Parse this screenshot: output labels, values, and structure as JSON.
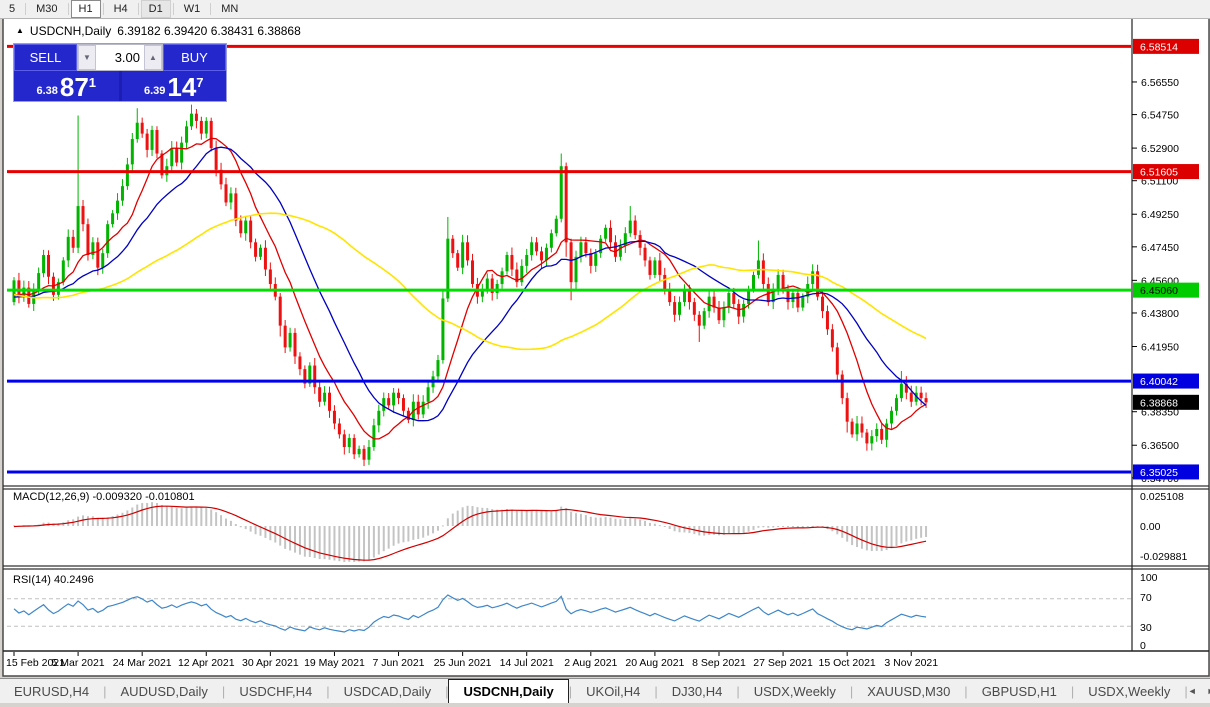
{
  "toolbar": {
    "periods": [
      {
        "label": "5",
        "state": "normal"
      },
      {
        "label": "M30",
        "state": "normal"
      },
      {
        "label": "H1",
        "state": "pressed"
      },
      {
        "label": "H4",
        "state": "normal"
      },
      {
        "label": "D1",
        "state": "soft"
      },
      {
        "label": "W1",
        "state": "normal"
      },
      {
        "label": "MN",
        "state": "normal"
      }
    ]
  },
  "window": {
    "title_symbol": "USDCNH,Daily",
    "title_ohlc": "6.39182 6.39420 6.38431 6.38868",
    "open": "6.39182",
    "high": "6.39420",
    "low": "6.38431",
    "close": "6.38868",
    "collapse_icon": "▲"
  },
  "trade_panel": {
    "sell_label": "SELL",
    "buy_label": "BUY",
    "volume": "3.00",
    "sell_price_small": "6.38",
    "sell_price_big": "87",
    "sell_price_sup": "1",
    "buy_price_small": "6.39",
    "buy_price_big": "14",
    "buy_price_sup": "7",
    "down_arrow": "▼",
    "up_arrow": "▲"
  },
  "macd_panel": {
    "label": "MACD(12,26,9) -0.009320 -0.010801",
    "scale": [
      "0.025108",
      "0.00",
      "-0.029881"
    ],
    "bar_color": "#c4c4c4",
    "signal_color": "#d00000"
  },
  "rsi_panel": {
    "label": "RSI(14) 40.2496",
    "levels": [
      "100",
      "70",
      "30",
      "0"
    ],
    "line_color": "#3e87c8",
    "level_line_color": "#c0c0c0"
  },
  "price_axis": {
    "ticks": [
      "6.56550",
      "6.54750",
      "6.52900",
      "6.51100",
      "6.49250",
      "6.47450",
      "6.45600",
      "6.43800",
      "6.41950",
      "6.38350",
      "6.36500",
      "6.34700"
    ]
  },
  "chart_data": {
    "type": "candlestick",
    "symbol": "USDCNH",
    "timeframe": "Daily",
    "bull_color": "#00b400",
    "bear_color": "#ee1111",
    "price_range": {
      "top": 6.5997,
      "bottom": 6.3436
    },
    "hlines": [
      {
        "price": 6.58514,
        "label": "6.58514",
        "color": "#e80000",
        "badge_bg": "#dd0000",
        "badge_fg": "#ffffff",
        "width": 3
      },
      {
        "price": 6.51605,
        "label": "6.51605",
        "color": "#e80000",
        "badge_bg": "#dd0000",
        "badge_fg": "#ffffff",
        "width": 3
      },
      {
        "price": 6.4506,
        "label": "6.45060",
        "color": "#00e000",
        "badge_bg": "#00cc00",
        "badge_fg": "#000000",
        "width": 3
      },
      {
        "price": 6.40042,
        "label": "6.40042",
        "color": "#0000f0",
        "badge_bg": "#0000e0",
        "badge_fg": "#ffffff",
        "width": 3
      },
      {
        "price": 6.35025,
        "label": "6.35025",
        "color": "#0000f0",
        "badge_bg": "#0000e0",
        "badge_fg": "#ffffff",
        "width": 3
      }
    ],
    "current_price": {
      "price": 6.38868,
      "label": "6.38868",
      "badge_bg": "#000000",
      "badge_fg": "#ffffff"
    },
    "ma_lines": [
      {
        "name": "ma-fast",
        "period": 10,
        "color": "#e00000"
      },
      {
        "name": "ma-mid",
        "period": 21,
        "color": "#0000c0"
      },
      {
        "name": "ma-slow",
        "period": 55,
        "color": "#ffe400"
      }
    ],
    "x_labels": [
      {
        "i": 0,
        "t": "15 Feb 2021"
      },
      {
        "i": 13,
        "t": "5 Mar 2021"
      },
      {
        "i": 26,
        "t": "24 Mar 2021"
      },
      {
        "i": 39,
        "t": "12 Apr 2021"
      },
      {
        "i": 52,
        "t": "30 Apr 2021"
      },
      {
        "i": 65,
        "t": "19 May 2021"
      },
      {
        "i": 78,
        "t": "7 Jun 2021"
      },
      {
        "i": 91,
        "t": "25 Jun 2021"
      },
      {
        "i": 104,
        "t": "14 Jul 2021"
      },
      {
        "i": 117,
        "t": "2 Aug 2021"
      },
      {
        "i": 130,
        "t": "20 Aug 2021"
      },
      {
        "i": 143,
        "t": "8 Sep 2021"
      },
      {
        "i": 156,
        "t": "27 Sep 2021"
      },
      {
        "i": 169,
        "t": "15 Oct 2021"
      },
      {
        "i": 182,
        "t": "3 Nov 2021"
      }
    ],
    "pre_closes": [
      6.498,
      6.492,
      6.486,
      6.49,
      6.483,
      6.476,
      6.481,
      6.473,
      6.467,
      6.471,
      6.464,
      6.458,
      6.462,
      6.455,
      6.449,
      6.453,
      6.446,
      6.451,
      6.444,
      6.448,
      6.441,
      6.445,
      6.439,
      6.443,
      6.437,
      6.441,
      6.446,
      6.44,
      6.444,
      6.438,
      6.442,
      6.447,
      6.441,
      6.445,
      6.439,
      6.443,
      6.448,
      6.442,
      6.446,
      6.44,
      6.444,
      6.449,
      6.443,
      6.447,
      6.441,
      6.445,
      6.45,
      6.444,
      6.448,
      6.442,
      6.446,
      6.451,
      6.445,
      6.449,
      6.443,
      6.447,
      6.452,
      6.446,
      6.45,
      6.444
    ],
    "closes": [
      6.456,
      6.447,
      6.452,
      6.443,
      6.451,
      6.46,
      6.47,
      6.458,
      6.448,
      6.455,
      6.467,
      6.48,
      6.474,
      6.497,
      6.487,
      6.47,
      6.477,
      6.463,
      6.471,
      6.487,
      6.493,
      6.5,
      6.508,
      6.52,
      6.534,
      6.543,
      6.537,
      6.528,
      6.539,
      6.526,
      6.514,
      6.519,
      6.529,
      6.521,
      6.532,
      6.541,
      6.548,
      6.544,
      6.537,
      6.544,
      6.529,
      6.517,
      6.509,
      6.499,
      6.504,
      6.489,
      6.482,
      6.489,
      6.477,
      6.469,
      6.474,
      6.462,
      6.454,
      6.447,
      6.431,
      6.419,
      6.427,
      6.414,
      6.407,
      6.399,
      6.409,
      6.397,
      6.389,
      6.394,
      6.384,
      6.377,
      6.371,
      6.364,
      6.369,
      6.36,
      6.363,
      6.357,
      6.364,
      6.376,
      6.384,
      6.391,
      6.387,
      6.394,
      6.391,
      6.384,
      6.379,
      6.389,
      6.382,
      6.389,
      6.397,
      6.403,
      6.412,
      6.446,
      6.479,
      6.471,
      6.463,
      6.477,
      6.467,
      6.454,
      6.447,
      6.451,
      6.457,
      6.449,
      6.454,
      6.461,
      6.47,
      6.462,
      6.455,
      6.464,
      6.47,
      6.477,
      6.472,
      6.467,
      6.474,
      6.482,
      6.49,
      6.519,
      6.477,
      6.455,
      6.469,
      6.477,
      6.471,
      6.464,
      6.471,
      6.479,
      6.485,
      6.477,
      6.469,
      6.475,
      6.482,
      6.489,
      6.481,
      6.474,
      6.467,
      6.459,
      6.467,
      6.459,
      6.451,
      6.444,
      6.437,
      6.444,
      6.451,
      6.444,
      6.437,
      6.431,
      6.439,
      6.447,
      6.441,
      6.434,
      6.441,
      6.449,
      6.443,
      6.436,
      6.443,
      6.451,
      6.459,
      6.467,
      6.454,
      6.444,
      6.451,
      6.459,
      6.451,
      6.444,
      6.449,
      6.441,
      6.447,
      6.454,
      6.461,
      6.447,
      6.439,
      6.429,
      6.419,
      6.404,
      6.391,
      6.378,
      6.371,
      6.377,
      6.372,
      6.366,
      6.37,
      6.374,
      6.368,
      6.377,
      6.384,
      6.391,
      6.399,
      6.394,
      6.389,
      6.394,
      6.391,
      6.38868
    ],
    "wick_overrides": {
      "13": [
        0.05,
        0.003
      ],
      "25": [
        0.008,
        0.002
      ],
      "36": [
        0.005,
        0.002
      ],
      "54": [
        0.002,
        0.006
      ],
      "71": [
        0.002,
        0.0035
      ],
      "87": [
        0.004,
        0.002
      ],
      "88": [
        0.012,
        0.002
      ],
      "111": [
        0.007,
        0.002
      ],
      "112": [
        0.002,
        0.008
      ],
      "113": [
        0.002,
        0.01
      ],
      "125": [
        0.008,
        0.002
      ],
      "139": [
        0.002,
        0.009
      ],
      "151": [
        0.011,
        0.002
      ],
      "169": [
        0.003,
        0.006
      ],
      "173": [
        0.002,
        0.004
      ],
      "180": [
        0.007,
        0.002
      ]
    }
  },
  "tabs": {
    "items": [
      "EURUSD,H4",
      "AUDUSD,Daily",
      "USDCHF,H4",
      "USDCAD,Daily",
      "USDCNH,Daily",
      "UKOil,H4",
      "DJ30,H4",
      "USDX,Weekly",
      "XAUUSD,M30",
      "GBPUSD,H1",
      "USDX,Weekly"
    ],
    "active_index": 4,
    "left_arrow": "◄",
    "right_arrow": "►"
  }
}
